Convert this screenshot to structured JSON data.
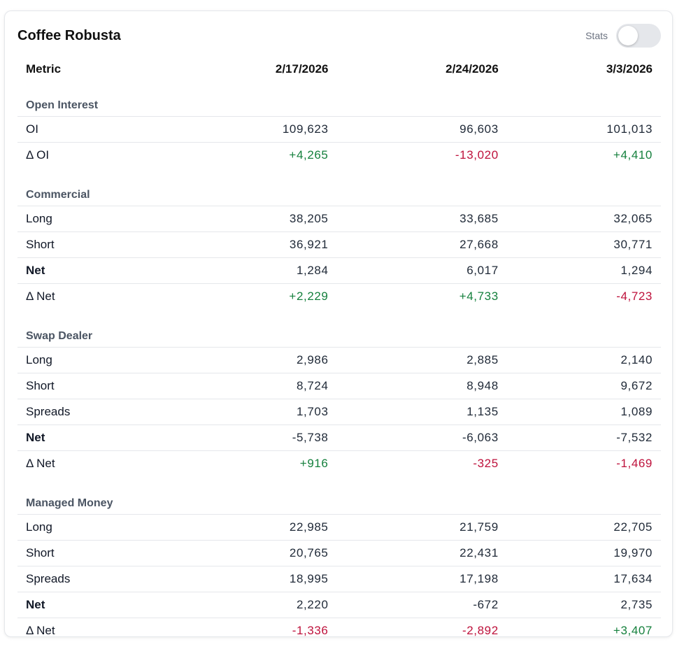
{
  "card": {
    "title": "Coffee Robusta",
    "stats_label": "Stats",
    "stats_toggle_on": false
  },
  "table": {
    "headers": [
      "Metric",
      "2/17/2026",
      "2/24/2026",
      "3/3/2026"
    ],
    "sections": [
      {
        "name": "Open Interest",
        "rows": [
          {
            "label": "OI",
            "bold": false,
            "values": [
              "109,623",
              "96,603",
              "101,013"
            ]
          },
          {
            "label": "Δ OI",
            "bold": false,
            "values": [
              "+4,265",
              "-13,020",
              "+4,410"
            ]
          }
        ]
      },
      {
        "name": "Commercial",
        "rows": [
          {
            "label": "Long",
            "bold": false,
            "values": [
              "38,205",
              "33,685",
              "32,065"
            ]
          },
          {
            "label": "Short",
            "bold": false,
            "values": [
              "36,921",
              "27,668",
              "30,771"
            ]
          },
          {
            "label": "Net",
            "bold": true,
            "values": [
              "1,284",
              "6,017",
              "1,294"
            ]
          },
          {
            "label": "Δ Net",
            "bold": false,
            "values": [
              "+2,229",
              "+4,733",
              "-4,723"
            ]
          }
        ]
      },
      {
        "name": "Swap Dealer",
        "rows": [
          {
            "label": "Long",
            "bold": false,
            "values": [
              "2,986",
              "2,885",
              "2,140"
            ]
          },
          {
            "label": "Short",
            "bold": false,
            "values": [
              "8,724",
              "8,948",
              "9,672"
            ]
          },
          {
            "label": "Spreads",
            "bold": false,
            "values": [
              "1,703",
              "1,135",
              "1,089"
            ]
          },
          {
            "label": "Net",
            "bold": true,
            "values": [
              "-5,738",
              "-6,063",
              "-7,532"
            ]
          },
          {
            "label": "Δ Net",
            "bold": false,
            "values": [
              "+916",
              "-325",
              "-1,469"
            ]
          }
        ]
      },
      {
        "name": "Managed Money",
        "rows": [
          {
            "label": "Long",
            "bold": false,
            "values": [
              "22,985",
              "21,759",
              "22,705"
            ]
          },
          {
            "label": "Short",
            "bold": false,
            "values": [
              "20,765",
              "22,431",
              "19,970"
            ]
          },
          {
            "label": "Spreads",
            "bold": false,
            "values": [
              "18,995",
              "17,198",
              "17,634"
            ]
          },
          {
            "label": "Net",
            "bold": true,
            "values": [
              "2,220",
              "-672",
              "2,735"
            ]
          },
          {
            "label": "Δ Net",
            "bold": false,
            "values": [
              "-1,336",
              "-2,892",
              "+3,407"
            ]
          }
        ]
      }
    ]
  },
  "colors": {
    "positive": "#15803d",
    "negative": "#be123c",
    "section_header": "#4b5563",
    "border": "#e5e7eb"
  }
}
